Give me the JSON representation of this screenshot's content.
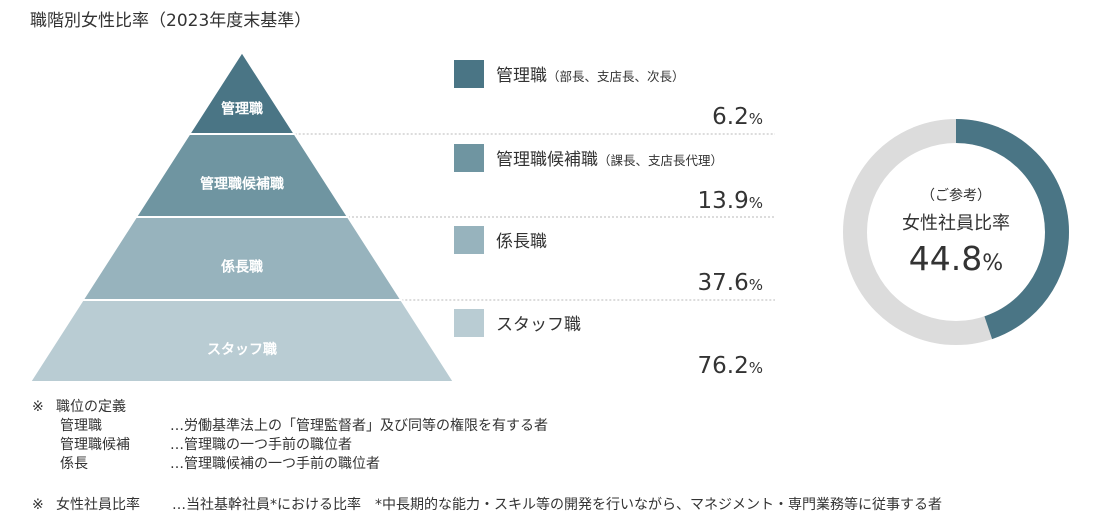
{
  "chart_data": {
    "type": "pyramid",
    "title": "職階別女性比率（2023年度末基準）",
    "series": [
      {
        "name": "管理職",
        "legend_main": "管理職",
        "legend_note": "（部長、支店長、次長）",
        "value": 6.2,
        "color": "#4a7585"
      },
      {
        "name": "管理職候補職",
        "legend_main": "管理職候補職",
        "legend_note": "（課長、支店長代理）",
        "value": 13.9,
        "color": "#6f95a1"
      },
      {
        "name": "係長職",
        "legend_main": "係長職",
        "legend_note": "",
        "value": 37.6,
        "color": "#97b3bd"
      },
      {
        "name": "スタッフ職",
        "legend_main": "スタッフ職",
        "legend_note": "",
        "value": 76.2,
        "color": "#b9ccd3"
      }
    ],
    "value_suffix": "%",
    "reference": {
      "caption_top": "（ご参考）",
      "caption_main": "女性社員比率",
      "value": 44.8,
      "suffix": "%",
      "color": "#4a7585",
      "remainder_color": "#dcdcdc"
    }
  },
  "notes": {
    "definitions_mark": "※",
    "definitions_title": "職位の定義",
    "definitions": [
      {
        "term": "管理職",
        "desc": "…労働基準法上の「管理監督者」及び同等の権限を有する者"
      },
      {
        "term": "管理職候補",
        "desc": "…管理職の一つ手前の職位者"
      },
      {
        "term": "係長",
        "desc": "…管理職候補の一つ手前の職位者"
      }
    ],
    "ratio_mark": "※",
    "ratio_term": "女性社員比率",
    "ratio_text": "…当社基幹社員*における比率　*中長期的な能力・スキル等の開発を行いながら、マネジメント・専門業務等に従事する者"
  }
}
